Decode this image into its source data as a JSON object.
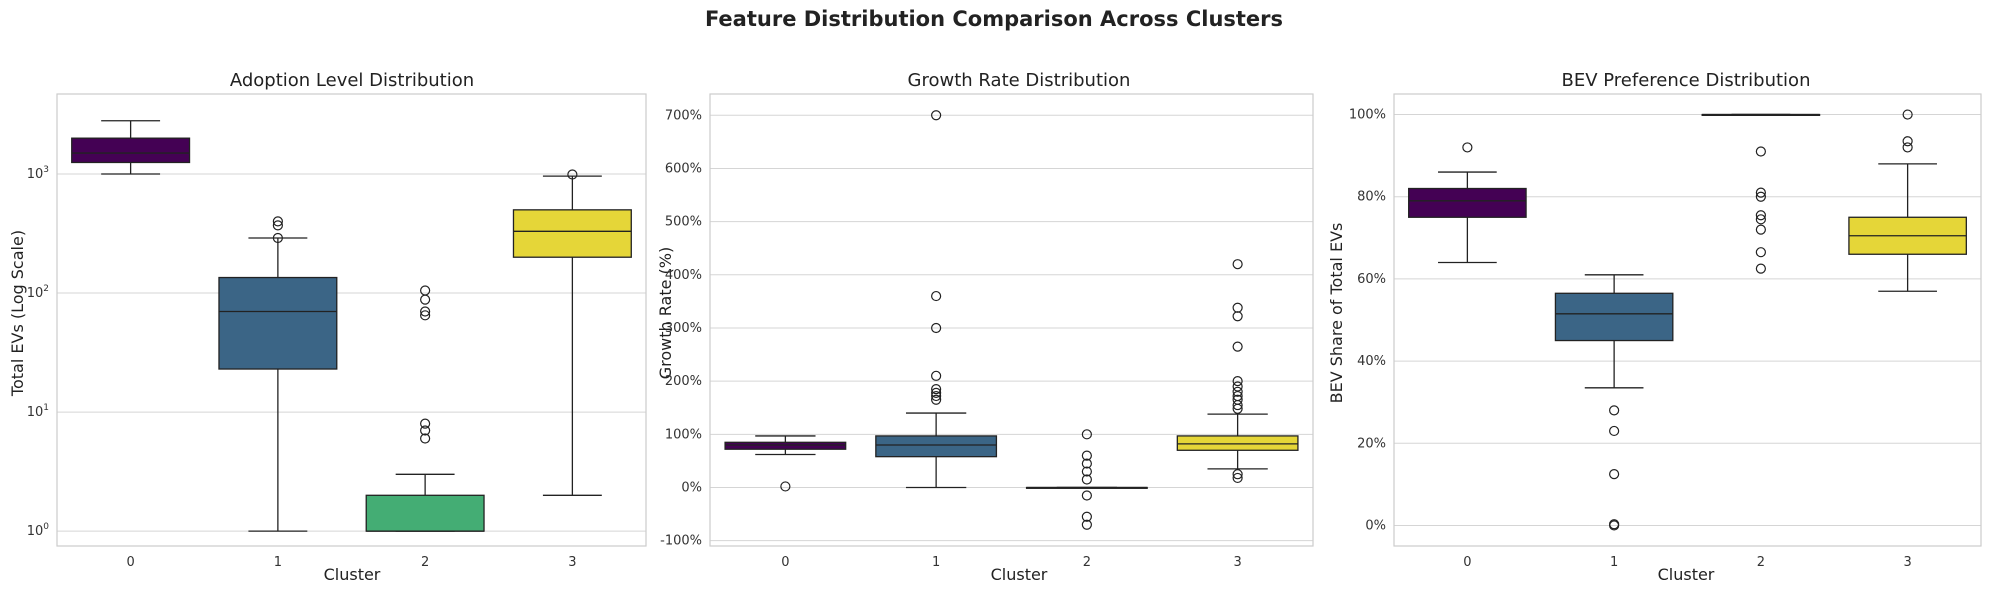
{
  "figure": {
    "suptitle": "Feature Distribution Comparison Across Clusters"
  },
  "colors": {
    "cluster_0": "#440154",
    "cluster_1": "#3b6586",
    "cluster_2": "#44ad74",
    "cluster_3": "#e5d638"
  },
  "chart_data": [
    {
      "type": "box",
      "title": "Adoption Level Distribution",
      "xlabel": "Cluster",
      "ylabel": "Total EVs (Log Scale)",
      "yscale": "log",
      "ylim": [
        0.75,
        4700
      ],
      "yticks": [
        {
          "value": 1,
          "base": "10",
          "exp": "0"
        },
        {
          "value": 10,
          "base": "10",
          "exp": "1"
        },
        {
          "value": 100,
          "base": "10",
          "exp": "2"
        },
        {
          "value": 1000,
          "base": "10",
          "exp": "3"
        }
      ],
      "grid": true,
      "categories": [
        "0",
        "1",
        "2",
        "3"
      ],
      "boxes": [
        {
          "cluster": "0",
          "whislo": 1000,
          "q1": 1250,
          "med": 1500,
          "q3": 2000,
          "whishi": 2800,
          "fliers": []
        },
        {
          "cluster": "1",
          "whislo": 1,
          "q1": 23,
          "med": 70,
          "q3": 135,
          "whishi": 290,
          "fliers": [
            290,
            370,
            400
          ]
        },
        {
          "cluster": "2",
          "whislo": 1,
          "q1": 1,
          "med": 1,
          "q3": 2,
          "whishi": 3,
          "fliers": [
            6,
            7,
            8,
            65,
            70,
            88,
            105
          ]
        },
        {
          "cluster": "3",
          "whislo": 2,
          "q1": 200,
          "med": 330,
          "q3": 500,
          "whishi": 960,
          "fliers": [
            990
          ]
        }
      ]
    },
    {
      "type": "box",
      "title": "Growth Rate Distribution",
      "xlabel": "Cluster",
      "ylabel": "Growth Rate (%)",
      "yscale": "linear",
      "ylim": [
        -110,
        740
      ],
      "yticks": [
        {
          "value": -100,
          "label": "-100%"
        },
        {
          "value": 0,
          "label": "0%"
        },
        {
          "value": 100,
          "label": "100%"
        },
        {
          "value": 200,
          "label": "200%"
        },
        {
          "value": 300,
          "label": "300%"
        },
        {
          "value": 400,
          "label": "400%"
        },
        {
          "value": 500,
          "label": "500%"
        },
        {
          "value": 600,
          "label": "600%"
        },
        {
          "value": 700,
          "label": "700%"
        }
      ],
      "grid": true,
      "categories": [
        "0",
        "1",
        "2",
        "3"
      ],
      "boxes": [
        {
          "cluster": "0",
          "whislo": 62,
          "q1": 72,
          "med": 80,
          "q3": 85,
          "whishi": 97,
          "fliers": [
            2
          ]
        },
        {
          "cluster": "1",
          "whislo": 0,
          "q1": 58,
          "med": 80,
          "q3": 97,
          "whishi": 140,
          "fliers": [
            165,
            172,
            178,
            185,
            210,
            300,
            360,
            700
          ]
        },
        {
          "cluster": "2",
          "whislo": 0,
          "q1": 0,
          "med": 0,
          "q3": 0,
          "whishi": 0,
          "fliers": [
            -70,
            -55,
            -15,
            15,
            30,
            45,
            60,
            100
          ]
        },
        {
          "cluster": "3",
          "whislo": 35,
          "q1": 70,
          "med": 82,
          "q3": 97,
          "whishi": 138,
          "fliers": [
            18,
            25,
            148,
            155,
            165,
            172,
            180,
            190,
            200,
            265,
            322,
            338,
            420
          ]
        }
      ]
    },
    {
      "type": "box",
      "title": "BEV Preference Distribution",
      "xlabel": "Cluster",
      "ylabel": "BEV Share of Total EVs",
      "yscale": "linear",
      "ylim": [
        -5,
        105
      ],
      "yticks": [
        {
          "value": 0,
          "label": "0%"
        },
        {
          "value": 20,
          "label": "20%"
        },
        {
          "value": 40,
          "label": "40%"
        },
        {
          "value": 60,
          "label": "60%"
        },
        {
          "value": 80,
          "label": "80%"
        },
        {
          "value": 100,
          "label": "100%"
        }
      ],
      "grid": true,
      "categories": [
        "0",
        "1",
        "2",
        "3"
      ],
      "boxes": [
        {
          "cluster": "0",
          "whislo": 64,
          "q1": 75,
          "med": 79,
          "q3": 82,
          "whishi": 86,
          "fliers": [
            92
          ]
        },
        {
          "cluster": "1",
          "whislo": 33.5,
          "q1": 45,
          "med": 51.5,
          "q3": 56.5,
          "whishi": 61,
          "fliers": [
            0,
            0.3,
            12.5,
            23,
            28
          ]
        },
        {
          "cluster": "2",
          "whislo": 100,
          "q1": 100,
          "med": 100,
          "q3": 100,
          "whishi": 100,
          "fliers": [
            62.5,
            66.5,
            72,
            74.5,
            75.5,
            80,
            81,
            91
          ]
        },
        {
          "cluster": "3",
          "whislo": 57,
          "q1": 66,
          "med": 70.5,
          "q3": 75,
          "whishi": 88,
          "fliers": [
            92,
            93.5,
            100
          ]
        }
      ]
    }
  ]
}
